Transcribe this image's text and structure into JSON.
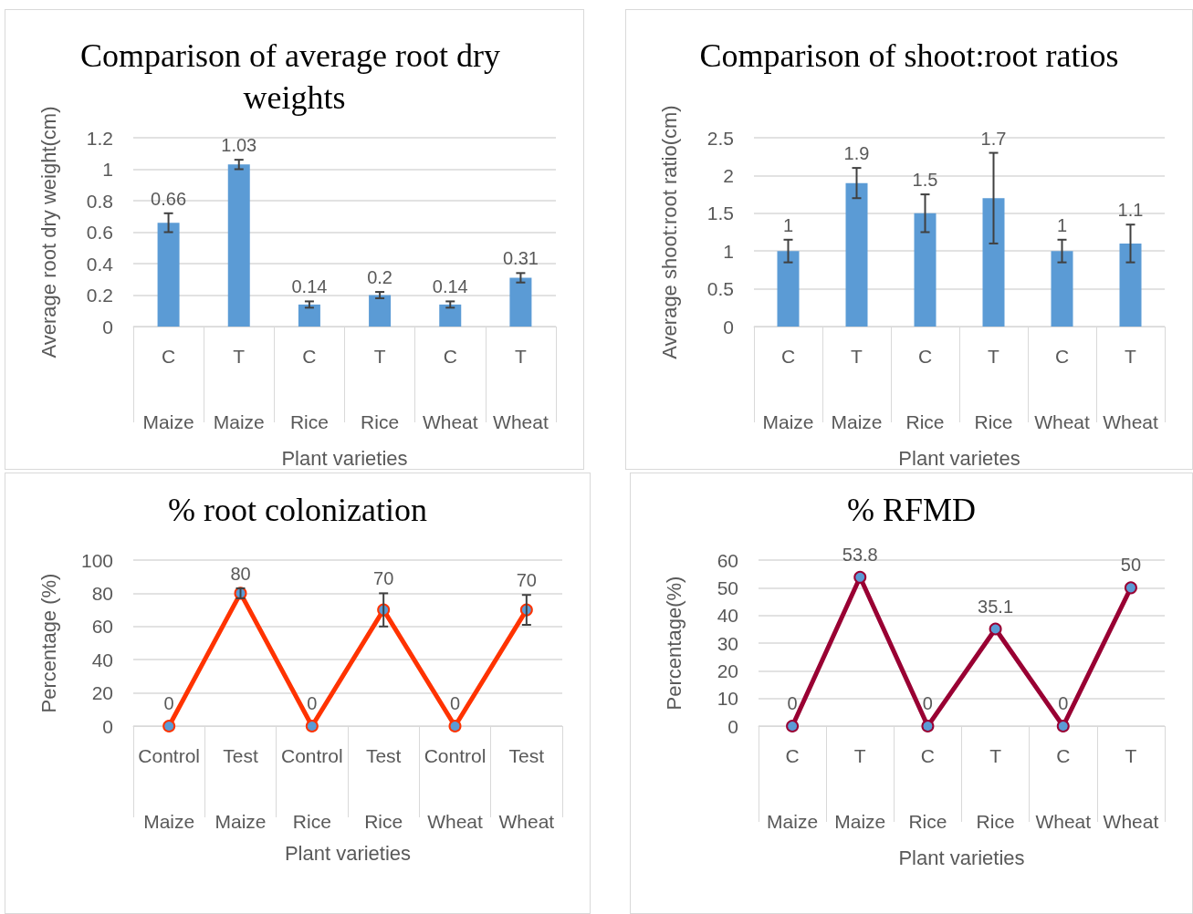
{
  "chart_data": [
    {
      "type": "bar",
      "title": "Comparison of average root dry weights",
      "xlabel": "Plant varieties",
      "ylabel": "Average root dry weight(cm)",
      "categories": [
        "C\nMaize",
        "T\nMaize",
        "C\nRice",
        "T\nRice",
        "C\nWheat",
        "T\nWheat"
      ],
      "values": [
        0.66,
        1.03,
        0.14,
        0.2,
        0.14,
        0.31
      ],
      "color": "#5b9bd5",
      "errors": [
        0.06,
        0.03,
        0.02,
        0.02,
        0.02,
        0.03
      ],
      "ylim": [
        0,
        1.2
      ],
      "yticks": [
        0,
        0.2,
        0.4,
        0.6,
        0.8,
        1,
        1.2
      ],
      "grid": "y",
      "data_labels": true
    },
    {
      "type": "bar",
      "title": "Comparison of shoot:root ratios",
      "xlabel": "Plant varietes",
      "ylabel": "Average shoot:root ratio(cm)",
      "categories": [
        "C\nMaize",
        "T\nMaize",
        "C\nRice",
        "T\nRice",
        "C\nWheat",
        "T\nWheat"
      ],
      "values": [
        1,
        1.9,
        1.5,
        1.7,
        1,
        1.1
      ],
      "color": "#5b9bd5",
      "errors": [
        0.15,
        0.2,
        0.25,
        [
          1.1,
          2.3
        ],
        0.15,
        0.25
      ],
      "ylim": [
        0,
        2.5
      ],
      "yticks": [
        0,
        0.5,
        1,
        1.5,
        2,
        2.5
      ],
      "grid": "y",
      "data_labels": true
    },
    {
      "type": "line",
      "title": "% root colonization",
      "xlabel": "Plant varieties",
      "ylabel": "Percentage (%)",
      "categories": [
        "Control\nMaize",
        "Test\nMaize",
        "Control\nRice",
        "Test\nRice",
        "Control\nWheat",
        "Test\nWheat"
      ],
      "values": [
        0,
        80,
        0,
        70,
        0,
        70
      ],
      "color": "#ff3300",
      "errors": [
        null,
        3,
        null,
        10,
        null,
        9
      ],
      "ylim": [
        0,
        100
      ],
      "yticks": [
        0,
        20,
        40,
        60,
        80,
        100
      ],
      "grid": "y",
      "data_labels": true,
      "marker": "circle",
      "line_style": "solid"
    },
    {
      "type": "line",
      "title": "% RFMD",
      "xlabel": "Plant varieties",
      "ylabel": "Percentage(%)",
      "categories": [
        "C\nMaize",
        "T\nMaize",
        "C\nRice",
        "T\nRice",
        "C\nWheat",
        "T\nWheat"
      ],
      "values": [
        0,
        53.8,
        0,
        35.1,
        0,
        50
      ],
      "color": "#990033",
      "ylim": [
        0,
        60
      ],
      "yticks": [
        0,
        10,
        20,
        30,
        40,
        50,
        60
      ],
      "grid": "y",
      "data_labels": true,
      "marker": "circle",
      "line_style": "solid"
    }
  ]
}
